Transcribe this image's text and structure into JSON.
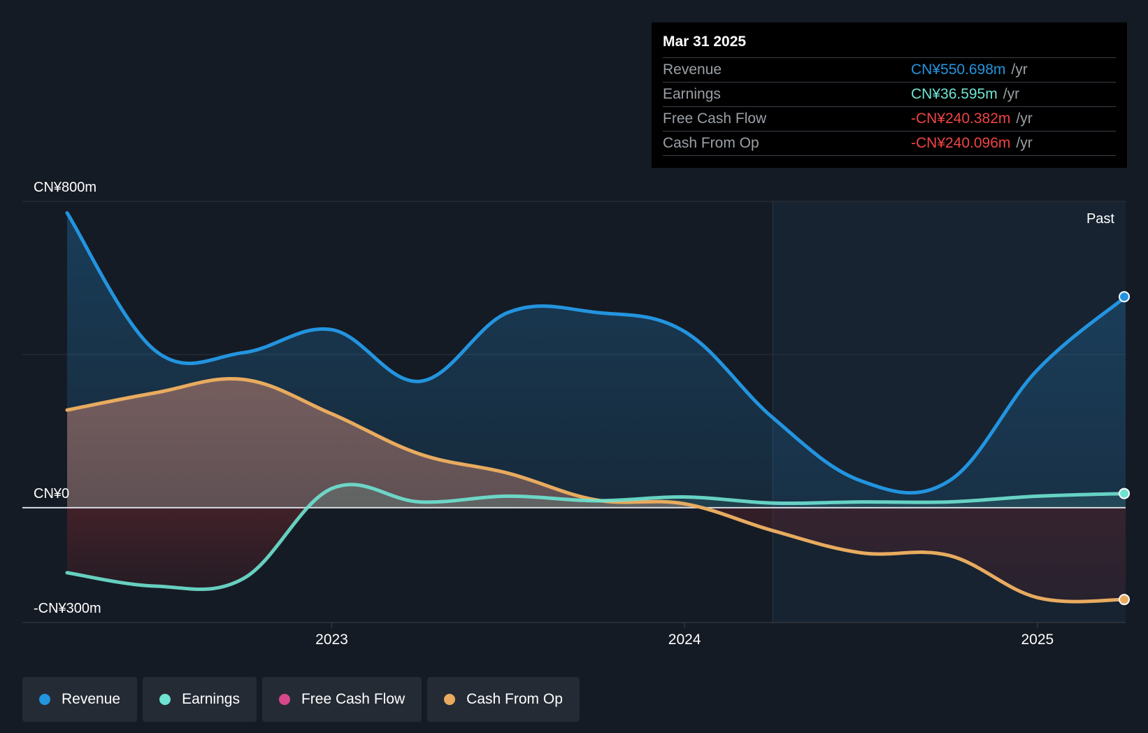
{
  "colors": {
    "background": "#151b24",
    "revenue": "#2394df",
    "earnings": "#6fe3d2",
    "free_cash_flow": "#d6488a",
    "cash_from_op": "#e8ab5f",
    "negative_value": "#ef4444"
  },
  "tooltip": {
    "date": "Mar 31 2025",
    "rows": [
      {
        "name": "Revenue",
        "value": "CN¥550.698m",
        "unit": "/yr",
        "color_key": "revenue"
      },
      {
        "name": "Earnings",
        "value": "CN¥36.595m",
        "unit": "/yr",
        "color_key": "earnings"
      },
      {
        "name": "Free Cash Flow",
        "value": "-CN¥240.382m",
        "unit": "/yr",
        "color_key": "negative_value"
      },
      {
        "name": "Cash From Op",
        "value": "-CN¥240.096m",
        "unit": "/yr",
        "color_key": "negative_value"
      }
    ]
  },
  "past_label": "Past",
  "legend": [
    {
      "label": "Revenue",
      "color_key": "revenue"
    },
    {
      "label": "Earnings",
      "color_key": "earnings"
    },
    {
      "label": "Free Cash Flow",
      "color_key": "free_cash_flow"
    },
    {
      "label": "Cash From Op",
      "color_key": "cash_from_op"
    }
  ],
  "chart_data": {
    "type": "area",
    "title": "",
    "xlabel": "",
    "ylabel": "",
    "y_tick_labels": [
      "CN¥800m",
      "CN¥0",
      "-CN¥300m"
    ],
    "y_ticks": [
      800,
      0,
      -300
    ],
    "ylim": [
      -300,
      800
    ],
    "x_tick_labels": [
      "2023",
      "2024",
      "2025"
    ],
    "x_ticks": [
      2023.0,
      2024.0,
      2025.0
    ],
    "xlim": [
      2022.25,
      2025.25
    ],
    "past_region_start": 2024.25,
    "grid": true,
    "legend_position": "bottom-left",
    "series": [
      {
        "name": "Revenue",
        "color_key": "revenue",
        "x": [
          2022.25,
          2022.5,
          2022.75,
          2023.0,
          2023.25,
          2023.5,
          2023.75,
          2024.0,
          2024.25,
          2024.5,
          2024.75,
          2025.0,
          2025.25
        ],
        "y": [
          770,
          410,
          405,
          465,
          330,
          510,
          510,
          460,
          235,
          70,
          70,
          360,
          551
        ]
      },
      {
        "name": "Earnings",
        "x": [
          2022.25,
          2022.5,
          2022.75,
          2023.0,
          2023.25,
          2023.5,
          2023.75,
          2024.0,
          2024.25,
          2024.5,
          2024.75,
          2025.0,
          2025.25
        ],
        "y": [
          -170,
          -205,
          -185,
          50,
          15,
          30,
          18,
          28,
          12,
          15,
          15,
          30,
          37
        ]
      },
      {
        "name": "Free Cash Flow",
        "color_key": "free_cash_flow",
        "x": [
          2022.25,
          2022.5,
          2022.75,
          2023.0,
          2023.25,
          2023.5,
          2023.75,
          2024.0,
          2024.25,
          2024.5,
          2024.75,
          2025.0,
          2025.25
        ],
        "y": [
          255,
          300,
          335,
          245,
          140,
          90,
          20,
          10,
          -60,
          -118,
          -125,
          -235,
          -240
        ]
      },
      {
        "name": "Cash From Op",
        "color_key": "cash_from_op",
        "x": [
          2022.25,
          2022.5,
          2022.75,
          2023.0,
          2023.25,
          2023.5,
          2023.75,
          2024.0,
          2024.25,
          2024.5,
          2024.75,
          2025.0,
          2025.25
        ],
        "y": [
          255,
          300,
          335,
          245,
          140,
          90,
          20,
          10,
          -60,
          -118,
          -125,
          -235,
          -240
        ]
      }
    ]
  }
}
